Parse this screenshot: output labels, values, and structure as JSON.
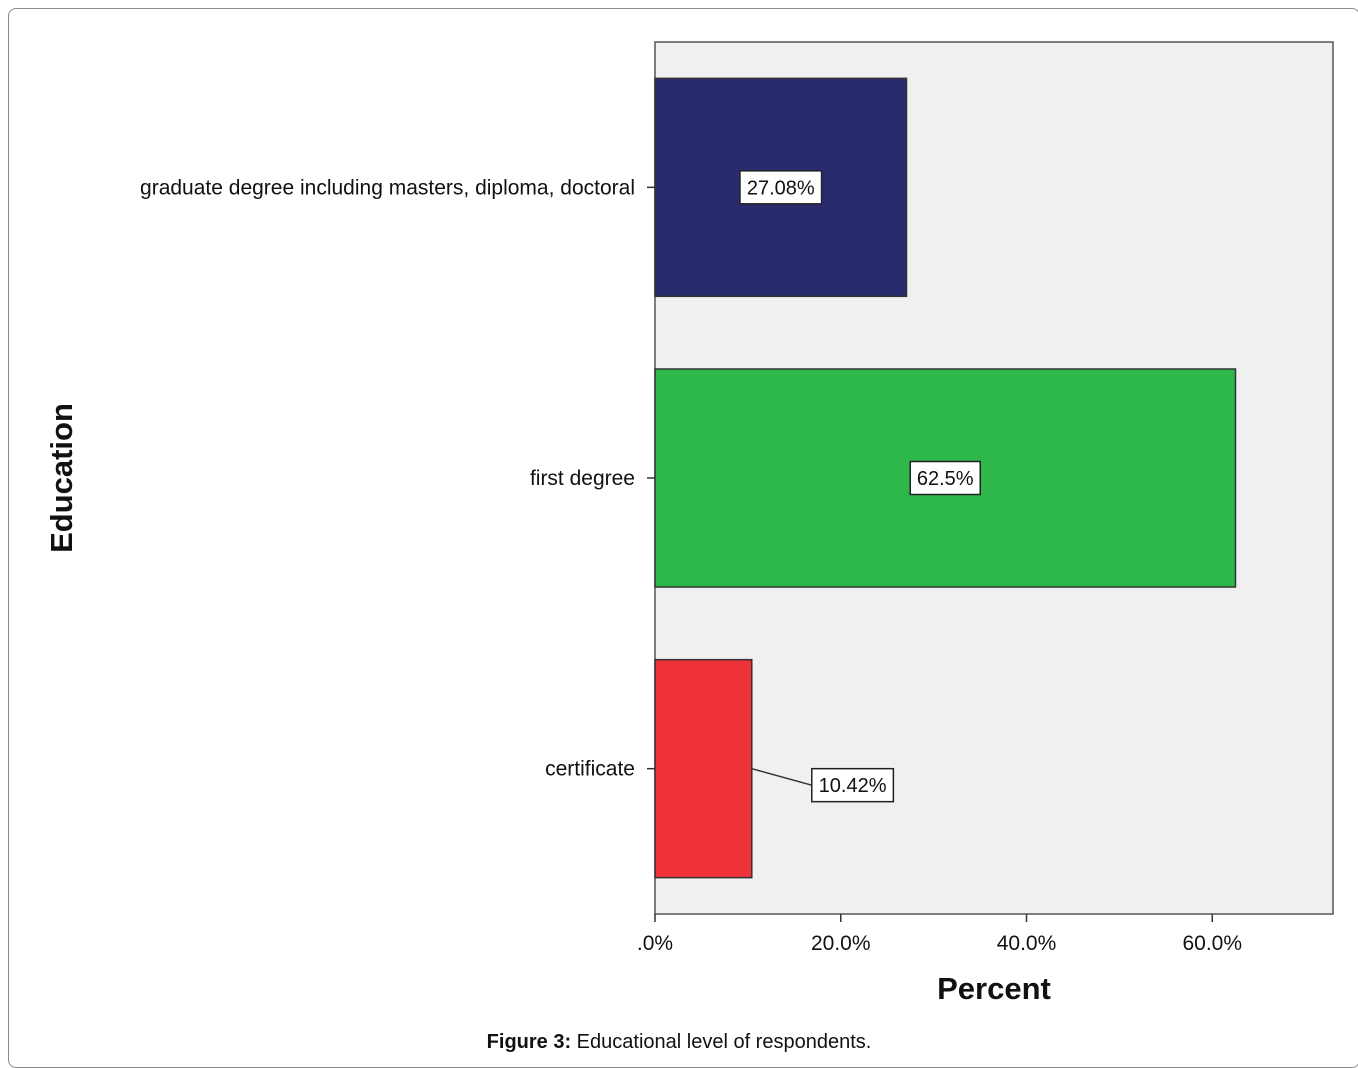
{
  "chart_data": {
    "type": "bar",
    "orientation": "horizontal",
    "categories": [
      "graduate degree including masters, diploma, doctoral",
      "first degree",
      "certificate"
    ],
    "values": [
      27.08,
      62.5,
      10.42
    ],
    "value_labels": [
      "27.08%",
      "62.5%",
      "10.42%"
    ],
    "colors": [
      "#2a2a6e",
      "#2eb84a",
      "#ef3238"
    ],
    "xlabel": "Percent",
    "ylabel": "Education",
    "xlim": [
      0,
      73
    ],
    "x_ticks": [
      0,
      20,
      40,
      60
    ],
    "x_tick_labels": [
      ".0%",
      "20.0%",
      "40.0%",
      "60.0%"
    ],
    "grid": false,
    "plot_background": "#f0f0f0"
  },
  "caption": {
    "label": "Figure 3:",
    "text": " Educational level of respondents."
  }
}
